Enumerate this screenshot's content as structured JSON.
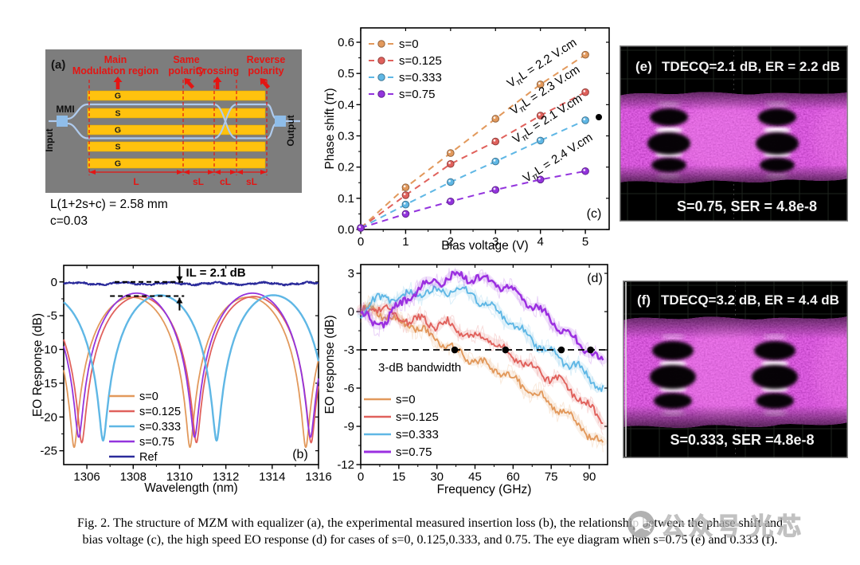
{
  "figure": {
    "caption_line1": "Fig. 2. The structure of MZM with equalizer (a), the experimental measured insertion loss (b), the relationship between the phase shift and",
    "caption_line2": "bias voltage (c), the high speed EO response (d) for cases of s=0, 0.125,0.333, and 0.75. The eye diagram when s=0.75 (e) and 0.333 (f)."
  },
  "watermark": {
    "account_text": "公众号",
    "name_text": "光芯"
  },
  "panel_a": {
    "label": "(a)",
    "ann": {
      "main1": "Main",
      "main2": "Modulation region",
      "same1": "Same",
      "same2": "polarity",
      "crossing": "Crossing",
      "rev1": "Reverse",
      "rev2": "polarity"
    },
    "electrodes": [
      "G",
      "S",
      "G",
      "S",
      "G"
    ],
    "mmi": "MMI",
    "input": "Input",
    "output": "Output",
    "dims": [
      "L",
      "sL",
      "cL",
      "sL"
    ],
    "eq1": "L(1+2s+c) = 2.58 mm",
    "eq2": "c=0.03",
    "colors": {
      "panel_gray": "#7d7d7d",
      "electrode_yellow": "#ffc20e",
      "waveguide_blue": "#afcbee",
      "mmi_blue": "#8fbde9",
      "accent_red": "#e41513"
    }
  },
  "panel_e": {
    "label": "(e)",
    "title": "TDECQ=2.1 dB, ER = 2.2 dB",
    "footer": "S=0.75, SER = 4.8e-8"
  },
  "panel_f": {
    "label": "(f)",
    "title": "TDECQ=3.2 dB, ER = 4.4 dB",
    "footer": "S=0.333, SER =4.8e-8"
  },
  "eye_colors": {
    "bg": "#000000",
    "trace": "#c93fc9",
    "hot": "#ffffff"
  },
  "chart_data": [
    {
      "id": "c",
      "type": "scatter",
      "xlabel": "Bias voltage (V)",
      "ylabel": "Phase shift (π)",
      "xlim": [
        0,
        5.53
      ],
      "ylim": [
        0,
        0.646
      ],
      "xticks": [
        0,
        1,
        2,
        3,
        4,
        5
      ],
      "yticks": [
        0.0,
        0.1,
        0.2,
        0.3,
        0.4,
        0.5,
        0.6
      ],
      "x": [
        0,
        1,
        2,
        3,
        4,
        5
      ],
      "series": [
        {
          "name": "s=0",
          "color": "#e2995c",
          "values": [
            0.005,
            0.135,
            0.245,
            0.355,
            0.465,
            0.56
          ],
          "annotation": {
            "pre": "V",
            "sub": "π",
            "post": "L = 2.2 V.cm"
          }
        },
        {
          "name": "s=0.125",
          "color": "#e0615c",
          "values": [
            0.005,
            0.11,
            0.21,
            0.282,
            0.365,
            0.44
          ],
          "annotation": {
            "pre": "V",
            "sub": "π",
            "post": "L = 2.3 V.cm"
          }
        },
        {
          "name": "s=0.333",
          "color": "#5fb7e5",
          "values": [
            0.005,
            0.08,
            0.152,
            0.218,
            0.285,
            0.35
          ],
          "annotation": {
            "pre": "V",
            "sub": "π",
            "post": "L = 2.1 V.cm"
          }
        },
        {
          "name": "s=0.75",
          "color": "#9334dd",
          "values": [
            0.005,
            0.05,
            0.09,
            0.127,
            0.16,
            0.187
          ],
          "annotation": {
            "pre": "V",
            "sub": "π",
            "post": "L = 2.4 V.cm"
          }
        }
      ],
      "extra_point": {
        "x": 5.3,
        "y": 0.36,
        "color": "#000000"
      },
      "corner_label": "(c)",
      "legend_position": "top-left"
    },
    {
      "id": "b",
      "type": "line",
      "xlabel": "Wavelength (nm)",
      "ylabel": "EO Response (dB)",
      "xlim": [
        1305,
        1316
      ],
      "ylim": [
        -27.05,
        2.45
      ],
      "xticks": [
        1306,
        1308,
        1310,
        1312,
        1314,
        1316
      ],
      "yticks": [
        0,
        -5,
        -10,
        -15,
        -20,
        -25
      ],
      "series": [
        {
          "name": "s=0",
          "color": "#e2995c",
          "fringe": {
            "null_nm": 1305.45,
            "fsr_nm": 5.0,
            "peak_db": -2.3,
            "floor_db": -24.5
          }
        },
        {
          "name": "s=0.125",
          "color": "#e0615c",
          "fringe": {
            "null_nm": 1305.78,
            "fsr_nm": 4.95,
            "peak_db": -2.2,
            "floor_db": -23.8
          }
        },
        {
          "name": "s=0.333",
          "color": "#5fb7e5",
          "fringe": {
            "null_nm": 1306.7,
            "fsr_nm": 4.9,
            "peak_db": -2.0,
            "floor_db": -23.5
          }
        },
        {
          "name": "s=0.75",
          "color": "#9334dd",
          "fringe": {
            "null_nm": 1305.65,
            "fsr_nm": 5.0,
            "peak_db": -1.7,
            "floor_db": -23.0
          }
        },
        {
          "name": "Ref",
          "color": "#2b2b9b",
          "flat_db": -0.3
        }
      ],
      "annotation": {
        "text": "IL = 2.1 dB",
        "upper_db": 0,
        "lower_db": -2.1
      },
      "corner_label": "(b)"
    },
    {
      "id": "d",
      "type": "line",
      "xlabel": "Frequency (GHz)",
      "ylabel": "EO response (dB)",
      "xlim": [
        0,
        97.2
      ],
      "ylim": [
        -12,
        3.69
      ],
      "xticks": [
        0,
        15,
        30,
        45,
        60,
        75,
        90
      ],
      "yticks": [
        3,
        0,
        -3,
        -6,
        -9,
        -12
      ],
      "x_step_ghz": 5,
      "series": [
        {
          "name": "s=0",
          "color": "#e2995c",
          "values": [
            0,
            0.2,
            -0.3,
            -0.8,
            -1.0,
            -1.6,
            -2.2,
            -2.9,
            -3.3,
            -3.8,
            -4.3,
            -4.6,
            -5.3,
            -6.0,
            -6.6,
            -7.2,
            -7.9,
            -8.7,
            -9.6,
            -10.4
          ]
        },
        {
          "name": "s=0.125",
          "color": "#e0615c",
          "values": [
            0,
            0.3,
            0.1,
            -0.4,
            -0.9,
            -0.5,
            -1.2,
            -0.9,
            -1.6,
            -2.1,
            -1.8,
            -2.8,
            -3.5,
            -4.1,
            -4.7,
            -5.2,
            -5.7,
            -6.5,
            -7.5,
            -8.6
          ]
        },
        {
          "name": "s=0.333",
          "color": "#5fb7e5",
          "values": [
            0,
            0.8,
            1.1,
            1.0,
            1.3,
            1.5,
            1.6,
            1.7,
            1.6,
            1.2,
            0.5,
            -0.2,
            -1.0,
            -1.8,
            -2.6,
            -3.3,
            -3.9,
            -4.3,
            -5.2,
            -6.0
          ]
        },
        {
          "name": "s=0.75",
          "color": "#9b30e0",
          "values": [
            0,
            -1.1,
            -0.6,
            0.4,
            1.4,
            2.1,
            2.4,
            2.6,
            2.8,
            2.6,
            2.4,
            2.1,
            1.5,
            0.8,
            0.2,
            -0.7,
            -1.5,
            -2.3,
            -3.1,
            -4.0
          ]
        }
      ],
      "bw_line_db": -3,
      "bw_points_ghz": [
        37,
        57,
        79,
        90.5
      ],
      "annotation": "3-dB bandwidth",
      "corner_label": "(d)"
    }
  ]
}
